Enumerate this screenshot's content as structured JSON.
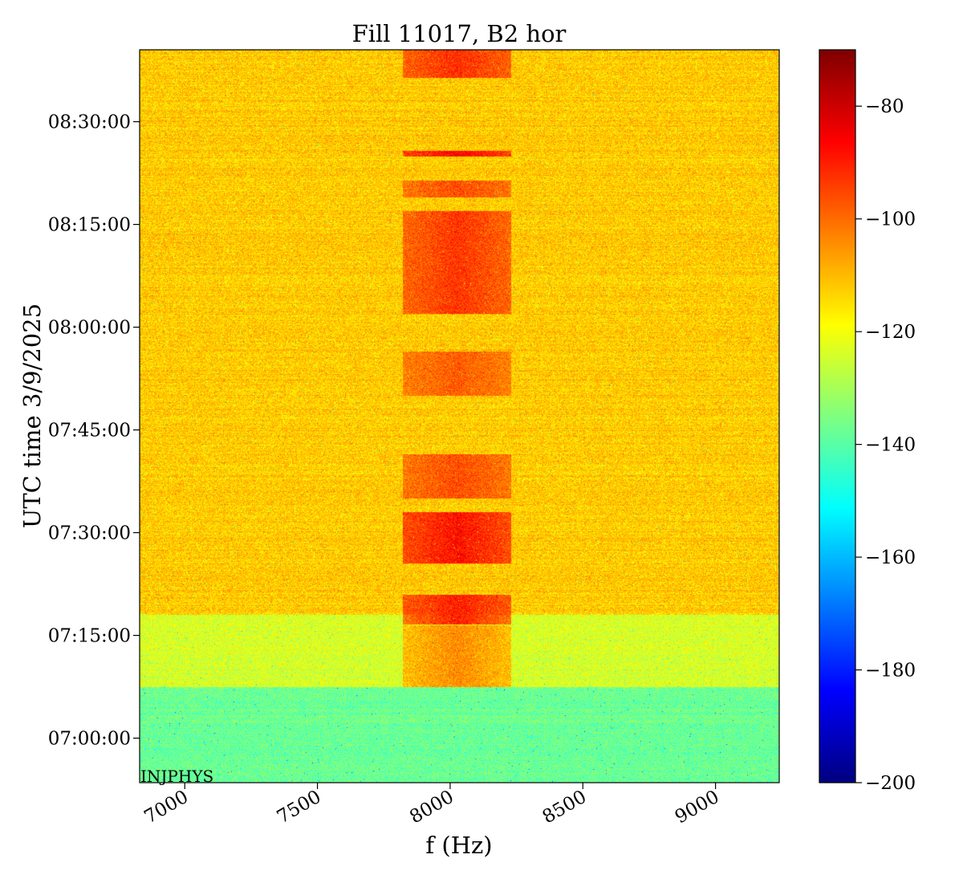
{
  "chart_data": {
    "type": "heatmap",
    "title": "Fill 11017, B2 hor",
    "xlabel": "f (Hz)",
    "ylabel": "UTC time 3/9/2025",
    "xlim": [
      6830,
      9240
    ],
    "ylim": [
      "06:53:30",
      "08:40:30"
    ],
    "x_ticks": [
      {
        "value": 7000,
        "label": "7000"
      },
      {
        "value": 7500,
        "label": "7500"
      },
      {
        "value": 8000,
        "label": "8000"
      },
      {
        "value": 8500,
        "label": "8500"
      },
      {
        "value": 9000,
        "label": "9000"
      }
    ],
    "y_ticks": [
      {
        "value": "07:00:00",
        "label": "07:00:00"
      },
      {
        "value": "07:15:00",
        "label": "07:15:00"
      },
      {
        "value": "07:30:00",
        "label": "07:30:00"
      },
      {
        "value": "07:45:00",
        "label": "07:45:00"
      },
      {
        "value": "08:00:00",
        "label": "08:00:00"
      },
      {
        "value": "08:15:00",
        "label": "08:15:00"
      },
      {
        "value": "08:30:00",
        "label": "08:30:00"
      }
    ],
    "colorbar": {
      "colormap": "jet",
      "range": [
        -200,
        -70
      ],
      "ticks": [
        {
          "value": -80,
          "label": "−80"
        },
        {
          "value": -100,
          "label": "−100"
        },
        {
          "value": -120,
          "label": "−120"
        },
        {
          "value": -140,
          "label": "−140"
        },
        {
          "value": -160,
          "label": "−160"
        },
        {
          "value": -180,
          "label": "−180"
        },
        {
          "value": -200,
          "label": "−200"
        }
      ]
    },
    "annotation": "INJPHYS",
    "background_levels_db": [
      {
        "from": "06:53:30",
        "to": "07:07:30",
        "level": -138
      },
      {
        "from": "07:07:30",
        "to": "07:18:00",
        "level": -124
      },
      {
        "from": "07:18:00",
        "to": "08:40:30",
        "level": -112
      }
    ],
    "signal_band_hz": [
      7820,
      8230
    ],
    "signal_segments": [
      {
        "from": "07:07:30",
        "to": "07:16:30",
        "level": -104
      },
      {
        "from": "07:16:40",
        "to": "07:21:00",
        "level": -90
      },
      {
        "from": "07:25:30",
        "to": "07:33:00",
        "level": -88
      },
      {
        "from": "07:35:00",
        "to": "07:41:30",
        "level": -96
      },
      {
        "from": "07:50:00",
        "to": "07:56:30",
        "level": -98
      },
      {
        "from": "08:02:00",
        "to": "08:17:00",
        "level": -93
      },
      {
        "from": "08:19:00",
        "to": "08:21:30",
        "level": -96
      },
      {
        "from": "08:25:00",
        "to": "08:25:50",
        "level": -86
      },
      {
        "from": "08:36:30",
        "to": "08:40:30",
        "level": -92
      }
    ]
  }
}
